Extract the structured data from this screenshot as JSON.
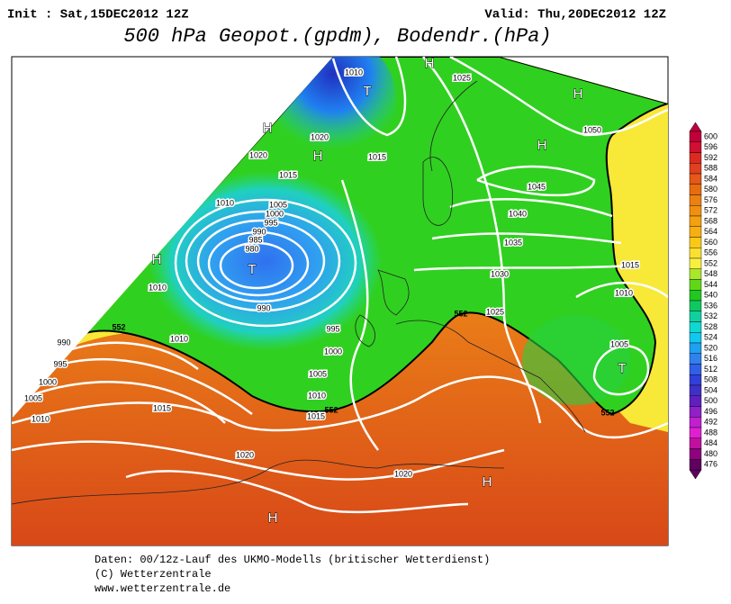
{
  "header": {
    "init": "Init : Sat,15DEC2012 12Z",
    "valid": "Valid: Thu,20DEC2012 12Z",
    "title": "500 hPa Geopot.(gpdm), Bodendr.(hPa)"
  },
  "isobar_labels": [
    1010,
    1025,
    1020,
    1015,
    1020,
    1015,
    1010,
    1005,
    1000,
    995,
    990,
    985,
    980,
    990,
    995,
    1000,
    1005,
    1010,
    1015,
    1010,
    1010,
    990,
    995,
    1000,
    1005,
    1010,
    1015,
    1020,
    1020,
    1050,
    1045,
    1040,
    1035,
    1030,
    1025,
    1015,
    1010,
    1005
  ],
  "contour_552_labels": [
    552,
    552,
    552,
    552
  ],
  "pressure_centers": [
    "H",
    "T",
    "H",
    "H",
    "H",
    "H",
    "T",
    "H",
    "T",
    "H",
    "H"
  ],
  "legend": [
    {
      "value": 600,
      "color": "#c0003a"
    },
    {
      "value": 596,
      "color": "#d01030"
    },
    {
      "value": 592,
      "color": "#dc2a20"
    },
    {
      "value": 588,
      "color": "#e04020"
    },
    {
      "value": 584,
      "color": "#e45818"
    },
    {
      "value": 580,
      "color": "#e86c10"
    },
    {
      "value": 576,
      "color": "#ec8010"
    },
    {
      "value": 572,
      "color": "#f09010"
    },
    {
      "value": 568,
      "color": "#f4a010"
    },
    {
      "value": 564,
      "color": "#f8b010"
    },
    {
      "value": 560,
      "color": "#fcc818"
    },
    {
      "value": 556,
      "color": "#fce030"
    },
    {
      "value": 552,
      "color": "#f8f040"
    },
    {
      "value": 548,
      "color": "#a8e828"
    },
    {
      "value": 544,
      "color": "#60d818"
    },
    {
      "value": 540,
      "color": "#20c820"
    },
    {
      "value": 536,
      "color": "#10c860"
    },
    {
      "value": 532,
      "color": "#10d0a0"
    },
    {
      "value": 528,
      "color": "#10d8d0"
    },
    {
      "value": 524,
      "color": "#10c8f0"
    },
    {
      "value": 520,
      "color": "#20a0f0"
    },
    {
      "value": 516,
      "color": "#3080f0"
    },
    {
      "value": 512,
      "color": "#3060e8"
    },
    {
      "value": 508,
      "color": "#3040d8"
    },
    {
      "value": 504,
      "color": "#4030c8"
    },
    {
      "value": 500,
      "color": "#6020c0"
    },
    {
      "value": 496,
      "color": "#9020c8"
    },
    {
      "value": 492,
      "color": "#c020d0"
    },
    {
      "value": 488,
      "color": "#e020d0"
    },
    {
      "value": 484,
      "color": "#c010a0"
    },
    {
      "value": 480,
      "color": "#900080"
    },
    {
      "value": 476,
      "color": "#600060"
    }
  ],
  "footer": [
    "Daten: 00/12z-Lauf des UKMO-Modells (britischer Wetterdienst)",
    "(C) Wetterzentrale",
    "www.wetterzentrale.de"
  ]
}
